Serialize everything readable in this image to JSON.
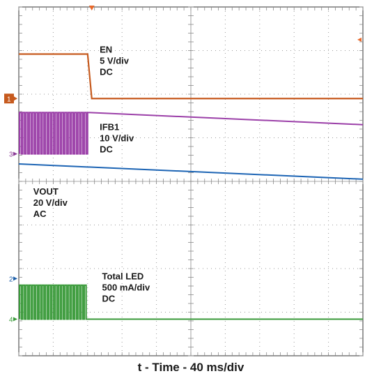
{
  "chart_data": {
    "type": "line",
    "title": "",
    "xlabel": "t - Time - 40 ms/div",
    "ylabel": "",
    "divisions": {
      "x": 10,
      "y": 8
    },
    "grid": true,
    "trigger_marker_color": "#e8682a",
    "channel_markers": [
      {
        "id": "1",
        "label": "1",
        "style": "filled",
        "color": "#c65a1e",
        "y": 5.9
      },
      {
        "id": "3",
        "label": "3",
        "style": "text",
        "color": "#8b3a96",
        "y": 4.63
      },
      {
        "id": "2",
        "label": "2",
        "style": "text",
        "color": "#1c5ea8",
        "y": 1.77
      },
      {
        "id": "4",
        "label": "4",
        "style": "text",
        "color": "#3a9a3a",
        "y": 0.84
      }
    ],
    "series": [
      {
        "id": "en",
        "color": "#c65a1e",
        "label_lines": [
          "EN",
          "5 V/div",
          "DC"
        ],
        "label_at": {
          "x": 2.35,
          "y": 6.95
        },
        "x": [
          0,
          2.0,
          2.0,
          2.12,
          2.12,
          10
        ],
        "y": [
          6.92,
          6.92,
          6.92,
          5.9,
          5.9,
          5.9
        ]
      },
      {
        "id": "ifb1",
        "color": "#9b3fa8",
        "label_lines": [
          "IFB1",
          "10 V/div",
          "DC"
        ],
        "label_at": {
          "x": 2.35,
          "y": 5.18
        },
        "switching": {
          "x_start": 0.02,
          "x_end": 2.0,
          "cycles": 21,
          "high": 5.58,
          "low": 4.63
        },
        "x": [
          2.0,
          10
        ],
        "y": [
          5.58,
          5.3
        ]
      },
      {
        "id": "vout",
        "color": "#1c64b4",
        "label_lines": [
          "VOUT",
          "20 V/div",
          "AC"
        ],
        "label_at": {
          "x": 0.42,
          "y": 3.7
        },
        "x": [
          0,
          10
        ],
        "y": [
          4.4,
          4.05
        ]
      },
      {
        "id": "total-led",
        "color": "#3a9a3a",
        "label_lines": [
          "Total LED",
          "500 mA/div",
          "DC"
        ],
        "label_at": {
          "x": 2.42,
          "y": 1.75
        },
        "switching": {
          "x_start": 0.02,
          "x_end": 2.0,
          "cycles": 21,
          "high": 1.62,
          "low": 0.84
        },
        "x": [
          2.0,
          10
        ],
        "y": [
          0.84,
          0.84
        ]
      }
    ]
  }
}
